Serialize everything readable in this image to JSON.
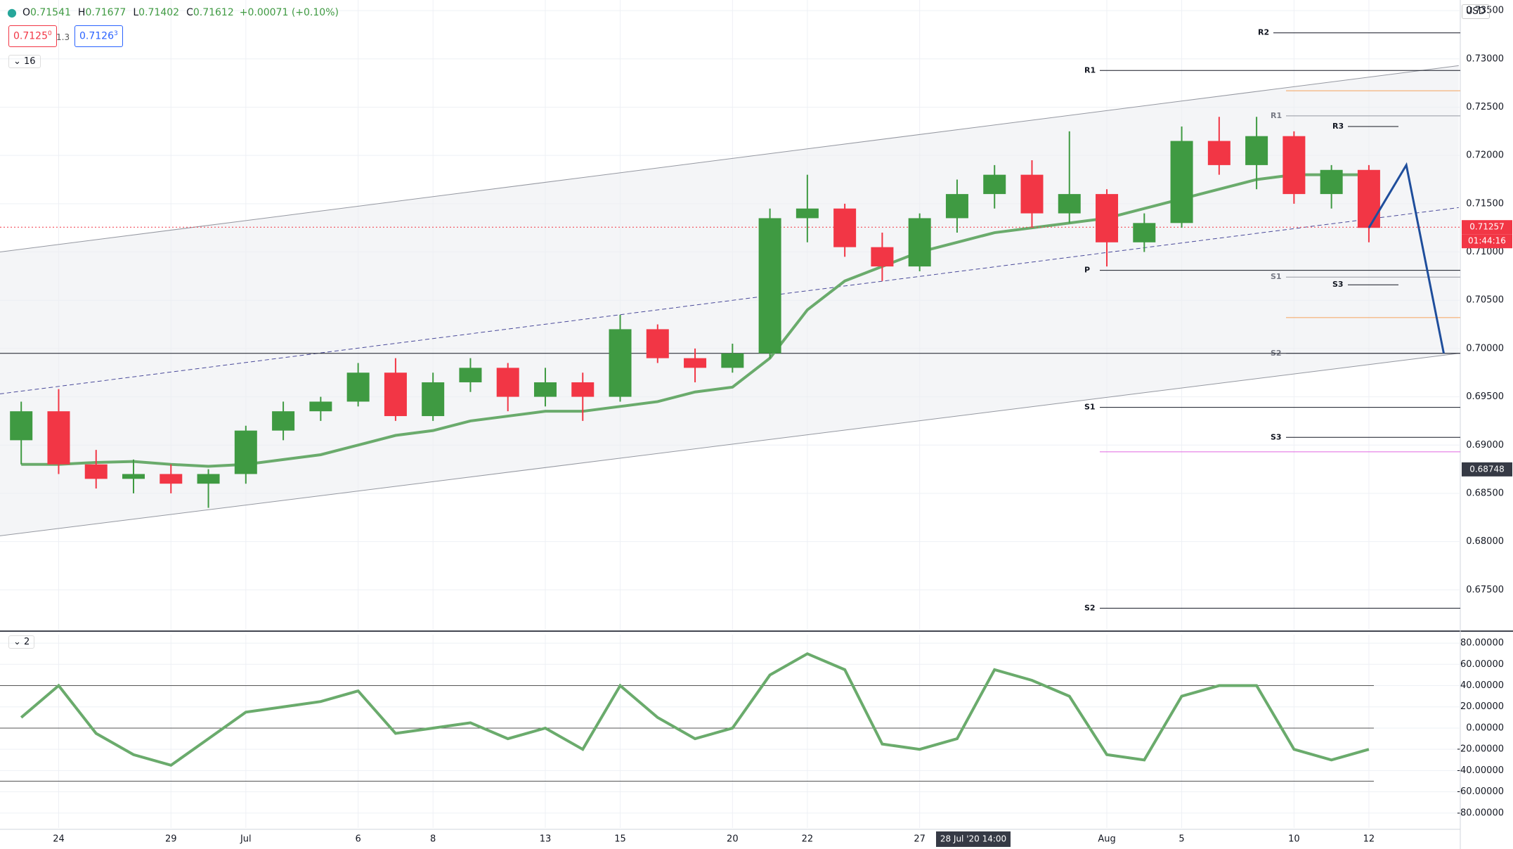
{
  "chart_data": {
    "type": "candlestick",
    "header": {
      "items": [
        {
          "key": "O",
          "value": 0.71541
        },
        {
          "key": "H",
          "value": 0.71677
        },
        {
          "key": "L",
          "value": 0.71402
        },
        {
          "key": "C",
          "value": 0.71612
        }
      ],
      "change": "+0.00071 (+0.10%)",
      "sell": "0.7125",
      "sell_pip": "0",
      "spread": "1.3",
      "buy": "0.7126",
      "buy_pip": "3",
      "interval": "16",
      "currency": "USD"
    },
    "categories": [
      null,
      "24",
      null,
      null,
      "29",
      null,
      "Jul",
      null,
      null,
      "6",
      null,
      "8",
      null,
      null,
      "13",
      null,
      "15",
      null,
      null,
      "20",
      null,
      "22",
      null,
      null,
      "27",
      null,
      null,
      null,
      null,
      "Aug",
      null,
      "5",
      null,
      null,
      "10",
      null,
      "12"
    ],
    "open": [
      0.6905,
      0.6935,
      0.688,
      0.6865,
      0.687,
      0.686,
      0.687,
      0.6915,
      0.6935,
      0.6945,
      0.6975,
      0.693,
      0.6965,
      0.698,
      0.695,
      0.6965,
      0.695,
      0.702,
      0.699,
      0.698,
      0.6995,
      0.7135,
      0.7145,
      0.7105,
      0.7085,
      0.7135,
      0.716,
      0.718,
      0.714,
      0.716,
      0.711,
      0.713,
      0.7215,
      0.719,
      0.722,
      0.716,
      0.7185
    ],
    "high": [
      0.6945,
      0.6958,
      0.6895,
      0.6885,
      0.688,
      0.6875,
      0.692,
      0.6945,
      0.695,
      0.6985,
      0.699,
      0.6975,
      0.699,
      0.6985,
      0.698,
      0.6975,
      0.7035,
      0.7025,
      0.7,
      0.7005,
      0.7145,
      0.718,
      0.715,
      0.712,
      0.714,
      0.7175,
      0.719,
      0.7195,
      0.7225,
      0.7165,
      0.714,
      0.723,
      0.724,
      0.724,
      0.7225,
      0.719,
      0.719
    ],
    "low": [
      0.688,
      0.687,
      0.6855,
      0.685,
      0.685,
      0.6835,
      0.686,
      0.6905,
      0.6925,
      0.694,
      0.6925,
      0.6925,
      0.6955,
      0.6935,
      0.694,
      0.6925,
      0.6945,
      0.6985,
      0.6965,
      0.6975,
      0.699,
      0.711,
      0.7095,
      0.707,
      0.708,
      0.712,
      0.7145,
      0.7125,
      0.713,
      0.7085,
      0.71,
      0.7125,
      0.718,
      0.7165,
      0.715,
      0.7145,
      0.711
    ],
    "close": [
      0.6935,
      0.688,
      0.6865,
      0.687,
      0.686,
      0.687,
      0.6915,
      0.6935,
      0.6945,
      0.6975,
      0.693,
      0.6965,
      0.698,
      0.695,
      0.6965,
      0.695,
      0.702,
      0.699,
      0.698,
      0.6995,
      0.7135,
      0.7145,
      0.7105,
      0.7085,
      0.7135,
      0.716,
      0.718,
      0.714,
      0.716,
      0.711,
      0.713,
      0.7215,
      0.719,
      0.722,
      0.716,
      0.7185,
      0.7125
    ],
    "up_color": "#3f9a42",
    "down_color": "#f23645",
    "ma": {
      "color": "#6aab6c",
      "values": [
        0.688,
        0.688,
        0.6882,
        0.6883,
        0.688,
        0.6878,
        0.688,
        0.6885,
        0.689,
        0.69,
        0.691,
        0.6915,
        0.6925,
        0.693,
        0.6935,
        0.6935,
        0.694,
        0.6945,
        0.6955,
        0.696,
        0.699,
        0.704,
        0.707,
        0.7085,
        0.71,
        0.711,
        0.712,
        0.7125,
        0.713,
        0.7135,
        0.7145,
        0.7155,
        0.7165,
        0.7175,
        0.718,
        0.718,
        0.718
      ]
    },
    "channel": {
      "x": [
        -0.57,
        38.4
      ],
      "upper": [
        0.71,
        0.7293
      ],
      "middle": [
        0.6953,
        0.7146
      ],
      "lower": [
        0.6806,
        0.6995
      ]
    },
    "projection": {
      "color": "#1f4e9c",
      "x": [
        36,
        37,
        38
      ],
      "values": [
        0.7125,
        0.719,
        0.6995
      ]
    },
    "pivots": [
      {
        "label": "R2",
        "value": 0.7327
      },
      {
        "label": "R1",
        "value": 0.7288
      },
      {
        "label": "R1",
        "value": 0.7241
      },
      {
        "label": "R3",
        "value": 0.723
      },
      {
        "label": "P",
        "value": 0.7081
      },
      {
        "label": "S1",
        "value": 0.7074
      },
      {
        "label": "S3",
        "value": 0.7066
      },
      {
        "label": "S2",
        "value": 0.6995
      },
      {
        "label": "S1",
        "value": 0.6939
      },
      {
        "label": "S3",
        "value": 0.6908
      },
      {
        "label": "S2",
        "value": 0.6731
      }
    ],
    "levels": [
      {
        "value": 0.7267,
        "color": "#f5a25d"
      },
      {
        "value": 0.7032,
        "color": "#f5a25d"
      },
      {
        "value": 0.6893,
        "color": "#e066e0"
      }
    ],
    "current_price": 0.71257,
    "countdown": "01:44:16",
    "crosshair_price": 0.68748,
    "crosshair_time": "28 Jul '20   14:00",
    "ylim": [
      0.6708,
      0.7361
    ],
    "yticks": [
      {
        "value": 0.675,
        "label": "0.67500"
      },
      {
        "value": 0.68,
        "label": "0.68000"
      },
      {
        "value": 0.685,
        "label": "0.68500"
      },
      {
        "value": 0.69,
        "label": "0.69000"
      },
      {
        "value": 0.695,
        "label": "0.69500"
      },
      {
        "value": 0.7,
        "label": "0.70000"
      },
      {
        "value": 0.705,
        "label": "0.70500"
      },
      {
        "value": 0.71,
        "label": "0.71000"
      },
      {
        "value": 0.715,
        "label": "0.71500"
      },
      {
        "value": 0.72,
        "label": "0.72000"
      },
      {
        "value": 0.725,
        "label": "0.72500"
      },
      {
        "value": 0.73,
        "label": "0.73000"
      },
      {
        "value": 0.735,
        "label": "0.73500"
      }
    ],
    "oscillator": {
      "label": "2",
      "color": "#6aab6c",
      "values": [
        10,
        40,
        -5,
        -25,
        -35,
        -10,
        15,
        20,
        25,
        35,
        -5,
        0,
        5,
        -10,
        0,
        -20,
        40,
        10,
        -10,
        0,
        50,
        70,
        55,
        -15,
        -20,
        -10,
        55,
        45,
        30,
        -25,
        -30,
        30,
        40,
        40,
        -20,
        -30,
        -20
      ],
      "levels": [
        40,
        0,
        -50
      ],
      "ylim": [
        -94,
        88
      ],
      "yticks": [
        {
          "value": 80,
          "label": "80.00000"
        },
        {
          "value": 60,
          "label": "60.00000"
        },
        {
          "value": 40,
          "label": "40.00000"
        },
        {
          "value": 20,
          "label": "20.00000"
        },
        {
          "value": 0,
          "label": "0.00000"
        },
        {
          "value": -20,
          "label": "-20.00000"
        },
        {
          "value": -40,
          "label": "-40.00000"
        },
        {
          "value": -60,
          "label": "-60.00000"
        },
        {
          "value": -80,
          "label": "-80.00000"
        }
      ]
    },
    "grid": true
  }
}
